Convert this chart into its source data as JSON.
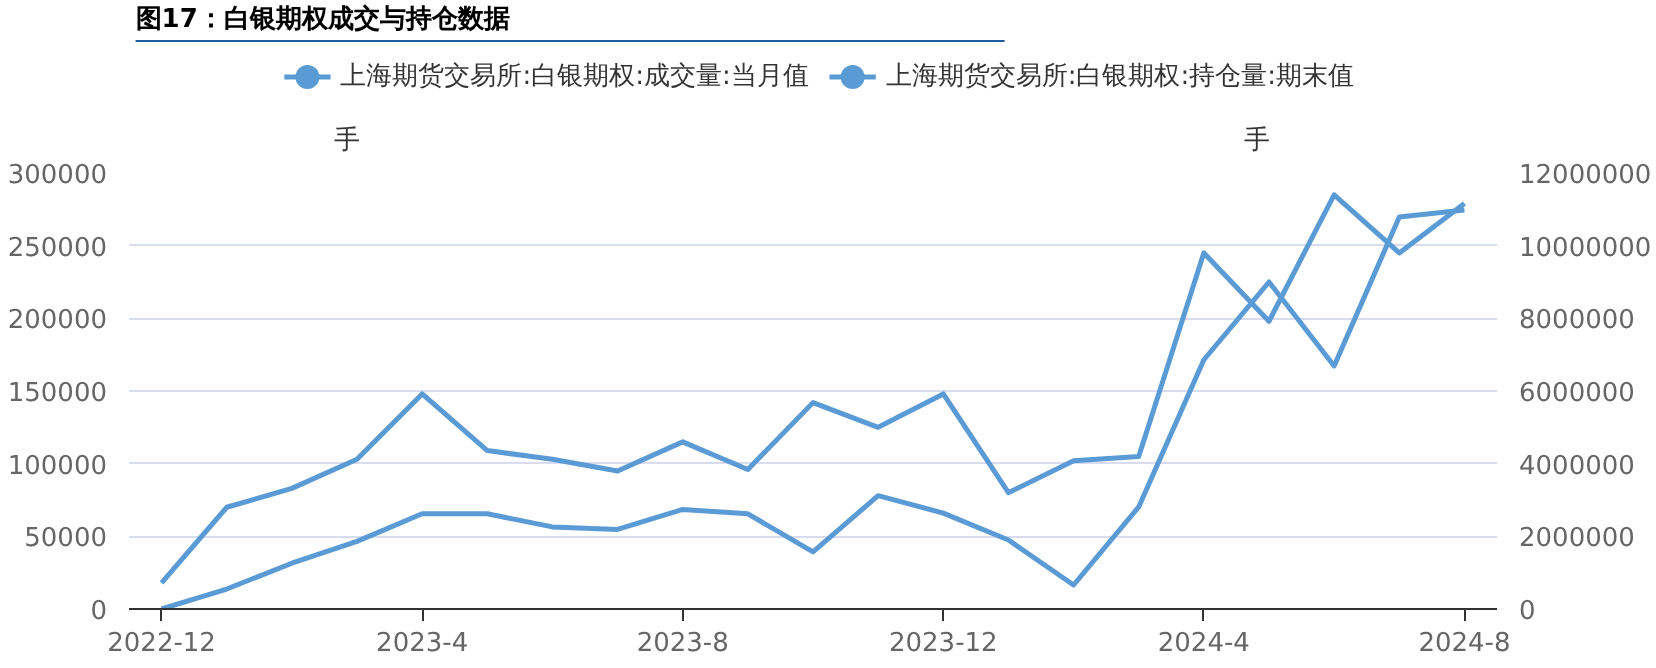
{
  "chart_data": {
    "type": "line",
    "title": "图17：白银期权成交与持仓数据",
    "categories": [
      "2022-12",
      null,
      null,
      null,
      "2023-4",
      null,
      null,
      null,
      "2023-8",
      null,
      null,
      null,
      "2023-12",
      null,
      null,
      null,
      "2024-4",
      null,
      null,
      null,
      "2024-8"
    ],
    "series": [
      {
        "name": "上海期货交易所:白银期权:成交量:当月值",
        "color": "#5b9bd5",
        "values": [
          18000,
          70000,
          83000,
          103000,
          148000,
          109000,
          103000,
          95000,
          115000,
          96000,
          142000,
          125000,
          148000,
          80000,
          102000,
          105000,
          245000,
          198000,
          285000,
          245000,
          279000
        ]
      },
      {
        "name": "上海期货交易所:白银期权:持仓量:期末值",
        "color": "#5b9bd5",
        "axis": "y2",
        "values": [
          0,
          550000,
          1260000,
          1860000,
          2620000,
          2620000,
          2260000,
          2190000,
          2740000,
          2620000,
          1570000,
          3120000,
          2640000,
          1900000,
          660000,
          2810000,
          6860000,
          9000000,
          6690000,
          10790000,
          10980000
        ]
      }
    ],
    "ylabel": "手",
    "y2label": "手",
    "ylim": [
      0,
      300000
    ],
    "yticks": [
      0,
      50000,
      100000,
      150000,
      200000,
      250000,
      300000
    ],
    "y2lim": [
      0,
      12000000
    ],
    "y2ticks": [
      0,
      2000000,
      4000000,
      6000000,
      8000000,
      10000000,
      12000000
    ],
    "grid": "y",
    "legend": "top",
    "line_style": "solid"
  }
}
